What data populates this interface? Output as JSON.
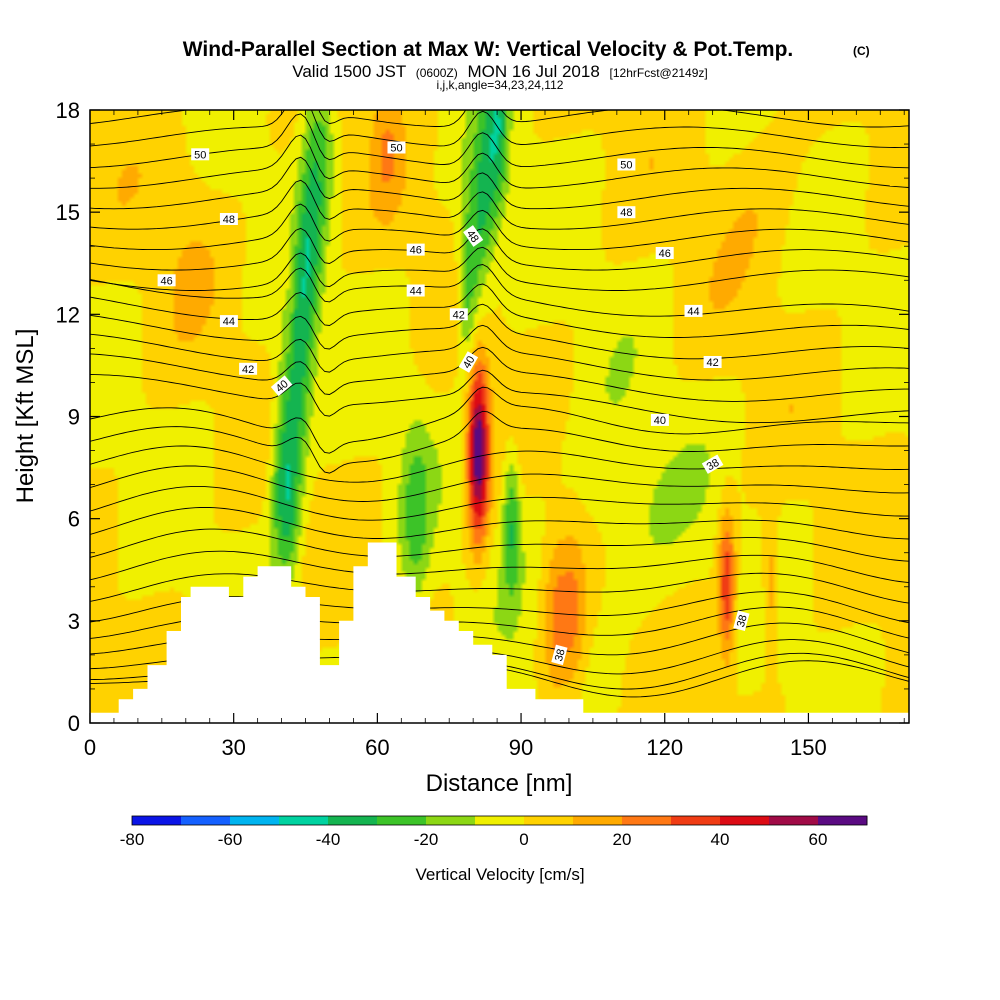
{
  "title": {
    "main": "Wind-Parallel Section at Max W: Vertical Velocity & Pot.Temp.",
    "main_suffix": "(C)",
    "line2_a": "Valid 1500 JST",
    "line2_b": "(0600Z)",
    "line2_c": "MON 16 Jul 2018",
    "line2_d": "[12hrFcst@2149z]",
    "line3": "i,j,k,angle=34,23,24,112"
  },
  "chart_data": {
    "type": "heatmap",
    "xlabel": "Distance [nm]",
    "ylabel": "Height [Kft MSL]",
    "xlim": [
      0,
      171
    ],
    "ylim": [
      0,
      18
    ],
    "x_ticks": [
      "0",
      "30",
      "60",
      "90",
      "120",
      "150"
    ],
    "y_ticks": [
      "0",
      "3",
      "6",
      "9",
      "12",
      "15",
      "18"
    ],
    "colorbar": {
      "label": "Vertical Velocity [cm/s]",
      "tick_labels": [
        "-80",
        "-60",
        "-40",
        "-20",
        "0",
        "20",
        "40",
        "60"
      ],
      "bounds": [
        -80,
        70
      ],
      "step": 10,
      "colors": [
        "#0a14e6",
        "#1460ff",
        "#00b4f0",
        "#00d2a0",
        "#14b450",
        "#3cc328",
        "#8cd714",
        "#f0f000",
        "#ffd200",
        "#ffaa00",
        "#ff7814",
        "#f03c14",
        "#dc0a14",
        "#a00a46",
        "#5a0a82"
      ]
    },
    "background_value": 0,
    "terrain_profile_kft": [
      [
        0,
        0.3
      ],
      [
        6,
        0.3
      ],
      [
        6,
        0.7
      ],
      [
        9,
        0.7
      ],
      [
        9,
        1.0
      ],
      [
        12,
        1.0
      ],
      [
        12,
        1.7
      ],
      [
        16,
        1.7
      ],
      [
        16,
        2.7
      ],
      [
        19,
        2.7
      ],
      [
        19,
        3.7
      ],
      [
        21,
        3.7
      ],
      [
        21,
        4.0
      ],
      [
        29,
        4.0
      ],
      [
        29,
        3.7
      ],
      [
        32,
        3.7
      ],
      [
        32,
        4.3
      ],
      [
        35,
        4.3
      ],
      [
        35,
        4.6
      ],
      [
        42,
        4.6
      ],
      [
        42,
        4.0
      ],
      [
        45,
        4.0
      ],
      [
        45,
        3.7
      ],
      [
        48,
        3.7
      ],
      [
        48,
        1.7
      ],
      [
        52,
        1.7
      ],
      [
        52,
        3.0
      ],
      [
        55,
        3.0
      ],
      [
        55,
        4.6
      ],
      [
        58,
        4.6
      ],
      [
        58,
        5.3
      ],
      [
        64,
        5.3
      ],
      [
        64,
        4.3
      ],
      [
        68,
        4.3
      ],
      [
        68,
        3.7
      ],
      [
        71,
        3.7
      ],
      [
        71,
        3.3
      ],
      [
        74,
        3.3
      ],
      [
        74,
        3.0
      ],
      [
        77,
        3.0
      ],
      [
        77,
        2.7
      ],
      [
        80,
        2.7
      ],
      [
        80,
        2.3
      ],
      [
        84,
        2.3
      ],
      [
        84,
        2.0
      ],
      [
        87,
        2.0
      ],
      [
        87,
        1.0
      ],
      [
        93,
        1.0
      ],
      [
        93,
        0.7
      ],
      [
        103,
        0.7
      ],
      [
        103,
        0.3
      ],
      [
        171,
        0.3
      ]
    ],
    "vertical_velocity_features": [
      {
        "shape": "tilted",
        "x1": 41,
        "y1": 7.2,
        "x2": 47,
        "y2": 17.2,
        "sx": 3.0,
        "sy": 2.8,
        "amp": -45
      },
      {
        "shape": "tilted",
        "x1": 42,
        "y1": 13.0,
        "x2": 47,
        "y2": 17.8,
        "sx": 2.0,
        "sy": 2.8,
        "amp": 20
      },
      {
        "shape": "tilted",
        "x1": 79,
        "y1": 13.0,
        "x2": 85,
        "y2": 17.2,
        "sx": 2.2,
        "sy": 2.6,
        "amp": -35
      },
      {
        "shape": "tilted",
        "x1": 81,
        "y1": 8.0,
        "x2": 81,
        "y2": 8.0,
        "sx": 2.2,
        "sy": 2.6,
        "amp": 70
      },
      {
        "shape": "tilted",
        "x1": 88,
        "y1": 6.0,
        "x2": 88,
        "y2": 6.0,
        "sx": 1.8,
        "sy": 2.2,
        "amp": -28
      },
      {
        "shape": "tilted",
        "x1": 98,
        "y1": 3.0,
        "x2": 100,
        "y2": 3.0,
        "sx": 3.5,
        "sy": 2.8,
        "amp": 25
      },
      {
        "shape": "tilted",
        "x1": 133,
        "y1": 4.0,
        "x2": 133,
        "y2": 4.0,
        "sx": 1.8,
        "sy": 2.2,
        "amp": 40
      },
      {
        "shape": "tilted",
        "x1": 142,
        "y1": 4.0,
        "x2": 142,
        "y2": 4.0,
        "sx": 1.6,
        "sy": 2.0,
        "amp": 22
      },
      {
        "shape": "tilted",
        "x1": 68,
        "y1": 6.0,
        "x2": 68,
        "y2": 6.0,
        "sx": 3.0,
        "sy": 3.0,
        "amp": -20
      },
      {
        "shape": "tilted",
        "x1": 110,
        "y1": 6.0,
        "x2": 110,
        "y2": 6.0,
        "sx": 14.0,
        "sy": 3.0,
        "amp": -11
      },
      {
        "shape": "tilted",
        "x1": 62,
        "y1": 17.0,
        "x2": 62,
        "y2": 17.0,
        "sx": 3.0,
        "sy": 2.0,
        "amp": 14
      },
      {
        "shape": "tilted",
        "x1": 140,
        "y1": 16.0,
        "x2": 140,
        "y2": 16.0,
        "sx": 10.0,
        "sy": 3.0,
        "amp": 8
      },
      {
        "shape": "tilted",
        "x1": 20,
        "y1": 15.0,
        "x2": 20,
        "y2": 15.0,
        "sx": 8.0,
        "sy": 3.0,
        "amp": 7
      }
    ],
    "theta_contours": {
      "base_height_kft": [
        1.3,
        1.5,
        1.9,
        2.4,
        2.9,
        3.4,
        4.0,
        4.6,
        5.2,
        5.8,
        6.4,
        7.0,
        7.6,
        8.2,
        8.8,
        9.4,
        10.0,
        10.6,
        11.2,
        11.8,
        12.4,
        13.0,
        13.6,
        14.2,
        14.8,
        15.4,
        16.0,
        16.6,
        17.2,
        17.8
      ],
      "labels": [
        {
          "text": "50",
          "x": 23,
          "y": 16.7,
          "angle": 0
        },
        {
          "text": "50",
          "x": 64,
          "y": 16.9,
          "angle": 0
        },
        {
          "text": "50",
          "x": 112,
          "y": 16.4,
          "angle": 0
        },
        {
          "text": "48",
          "x": 29,
          "y": 14.8,
          "angle": 0
        },
        {
          "text": "48",
          "x": 80,
          "y": 14.3,
          "angle": 55
        },
        {
          "text": "48",
          "x": 112,
          "y": 15.0,
          "angle": 0
        },
        {
          "text": "46",
          "x": 16,
          "y": 13.0,
          "angle": 0
        },
        {
          "text": "46",
          "x": 68,
          "y": 13.9,
          "angle": 0
        },
        {
          "text": "46",
          "x": 120,
          "y": 13.8,
          "angle": 0
        },
        {
          "text": "44",
          "x": 29,
          "y": 11.8,
          "angle": 0
        },
        {
          "text": "44",
          "x": 68,
          "y": 12.7,
          "angle": 0
        },
        {
          "text": "44",
          "x": 126,
          "y": 12.1,
          "angle": 0
        },
        {
          "text": "42",
          "x": 33,
          "y": 10.4,
          "angle": 0
        },
        {
          "text": "42",
          "x": 77,
          "y": 12.0,
          "angle": 0
        },
        {
          "text": "42",
          "x": 130,
          "y": 10.6,
          "angle": 0
        },
        {
          "text": "40",
          "x": 40,
          "y": 9.9,
          "angle": -40
        },
        {
          "text": "40",
          "x": 79,
          "y": 10.6,
          "angle": -60
        },
        {
          "text": "40",
          "x": 119,
          "y": 8.9,
          "angle": 0
        },
        {
          "text": "38",
          "x": 130,
          "y": 7.6,
          "angle": -30
        },
        {
          "text": "38",
          "x": 98,
          "y": 2.0,
          "angle": -75
        },
        {
          "text": "38",
          "x": 136,
          "y": 3.0,
          "angle": -75
        }
      ]
    }
  }
}
